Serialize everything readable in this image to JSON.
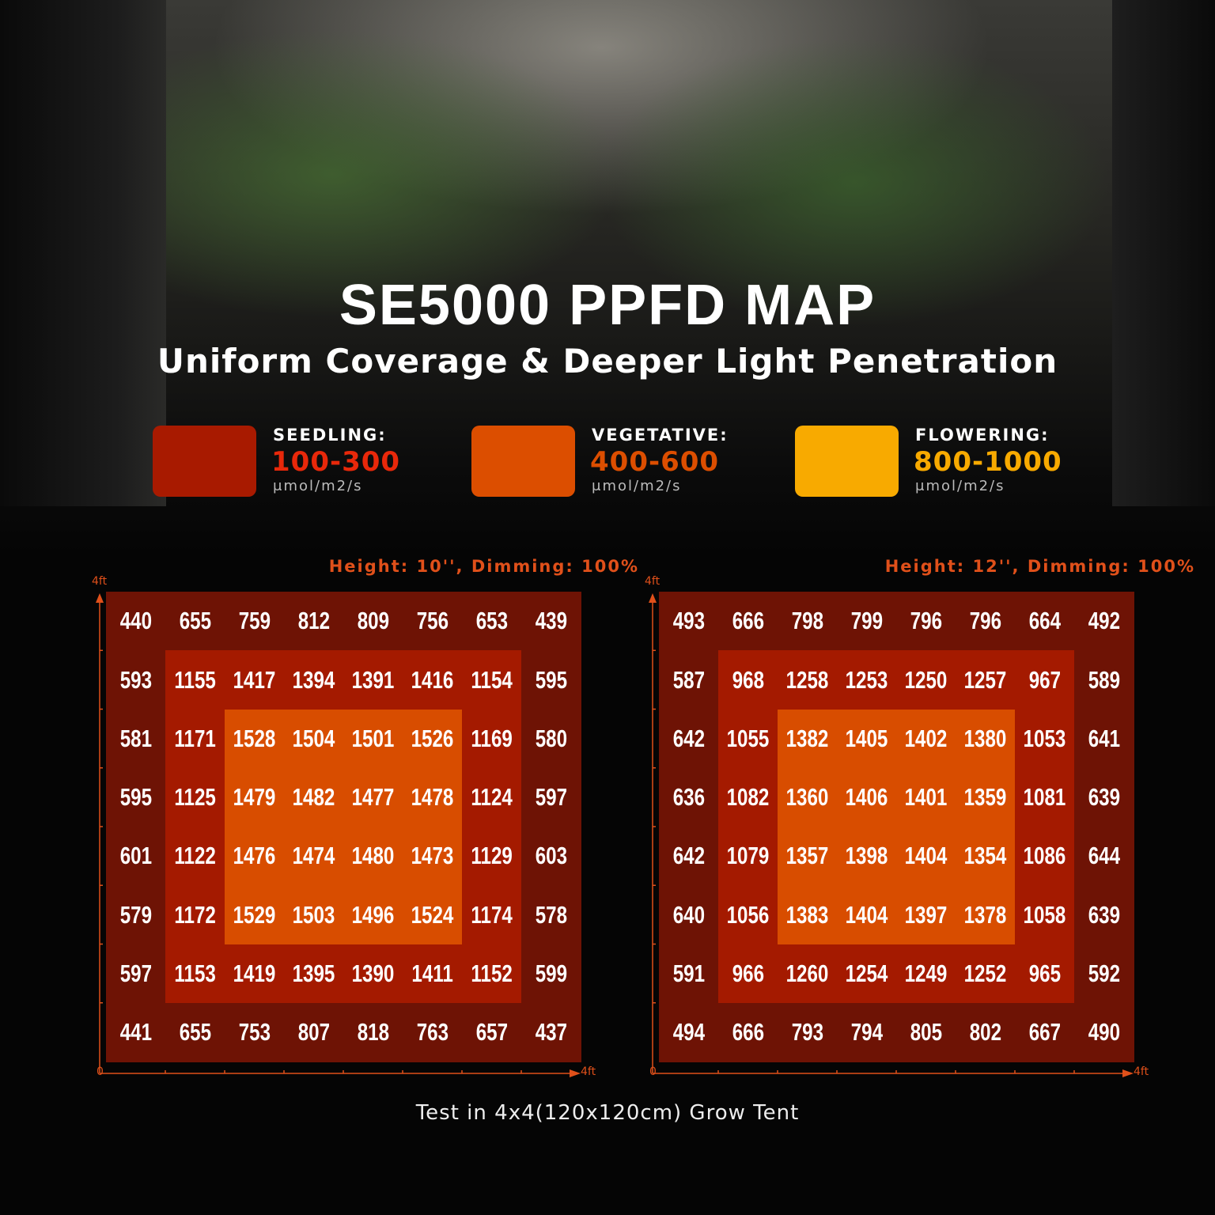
{
  "header": {
    "title": "SE5000 PPFD MAP",
    "subtitle": "Uniform Coverage & Deeper Light Penetration"
  },
  "legend": [
    {
      "label": "SEEDLING:",
      "range": "100-300",
      "unit": "μmol/m2/s",
      "color": "#a81a00"
    },
    {
      "label": "VEGETATIVE:",
      "range": "400-600",
      "unit": "μmol/m2/s",
      "color": "#dc4e00"
    },
    {
      "label": "FLOWERING:",
      "range": "800-1000",
      "unit": "μmol/m2/s",
      "color": "#f8aa00"
    }
  ],
  "zone_colors": {
    "outer": "#6e1305",
    "middle": "#a41a00",
    "center": "#d84d00"
  },
  "chart_data": [
    {
      "type": "heatmap",
      "title": "Height: 10'', Dimming: 100%",
      "x_axis": {
        "start": "0",
        "end": "4ft"
      },
      "y_axis": {
        "end": "4ft"
      },
      "values": [
        [
          440,
          655,
          759,
          812,
          809,
          756,
          653,
          439
        ],
        [
          593,
          1155,
          1417,
          1394,
          1391,
          1416,
          1154,
          595
        ],
        [
          581,
          1171,
          1528,
          1504,
          1501,
          1526,
          1169,
          580
        ],
        [
          595,
          1125,
          1479,
          1482,
          1477,
          1478,
          1124,
          597
        ],
        [
          601,
          1122,
          1476,
          1474,
          1480,
          1473,
          1129,
          603
        ],
        [
          579,
          1172,
          1529,
          1503,
          1496,
          1524,
          1174,
          578
        ],
        [
          597,
          1153,
          1419,
          1395,
          1390,
          1411,
          1152,
          599
        ],
        [
          441,
          655,
          753,
          807,
          818,
          763,
          657,
          437
        ]
      ]
    },
    {
      "type": "heatmap",
      "title": "Height: 12'', Dimming: 100%",
      "x_axis": {
        "start": "0",
        "end": "4ft"
      },
      "y_axis": {
        "end": "4ft"
      },
      "values": [
        [
          493,
          666,
          798,
          799,
          796,
          796,
          664,
          492
        ],
        [
          587,
          968,
          1258,
          1253,
          1250,
          1257,
          967,
          589
        ],
        [
          642,
          1055,
          1382,
          1405,
          1402,
          1380,
          1053,
          641
        ],
        [
          636,
          1082,
          1360,
          1406,
          1401,
          1359,
          1081,
          639
        ],
        [
          642,
          1079,
          1357,
          1398,
          1404,
          1354,
          1086,
          644
        ],
        [
          640,
          1056,
          1383,
          1404,
          1397,
          1378,
          1058,
          639
        ],
        [
          591,
          966,
          1260,
          1254,
          1249,
          1252,
          965,
          592
        ],
        [
          494,
          666,
          793,
          794,
          805,
          802,
          667,
          490
        ]
      ]
    }
  ],
  "footer": "Test in 4x4(120x120cm) Grow Tent"
}
